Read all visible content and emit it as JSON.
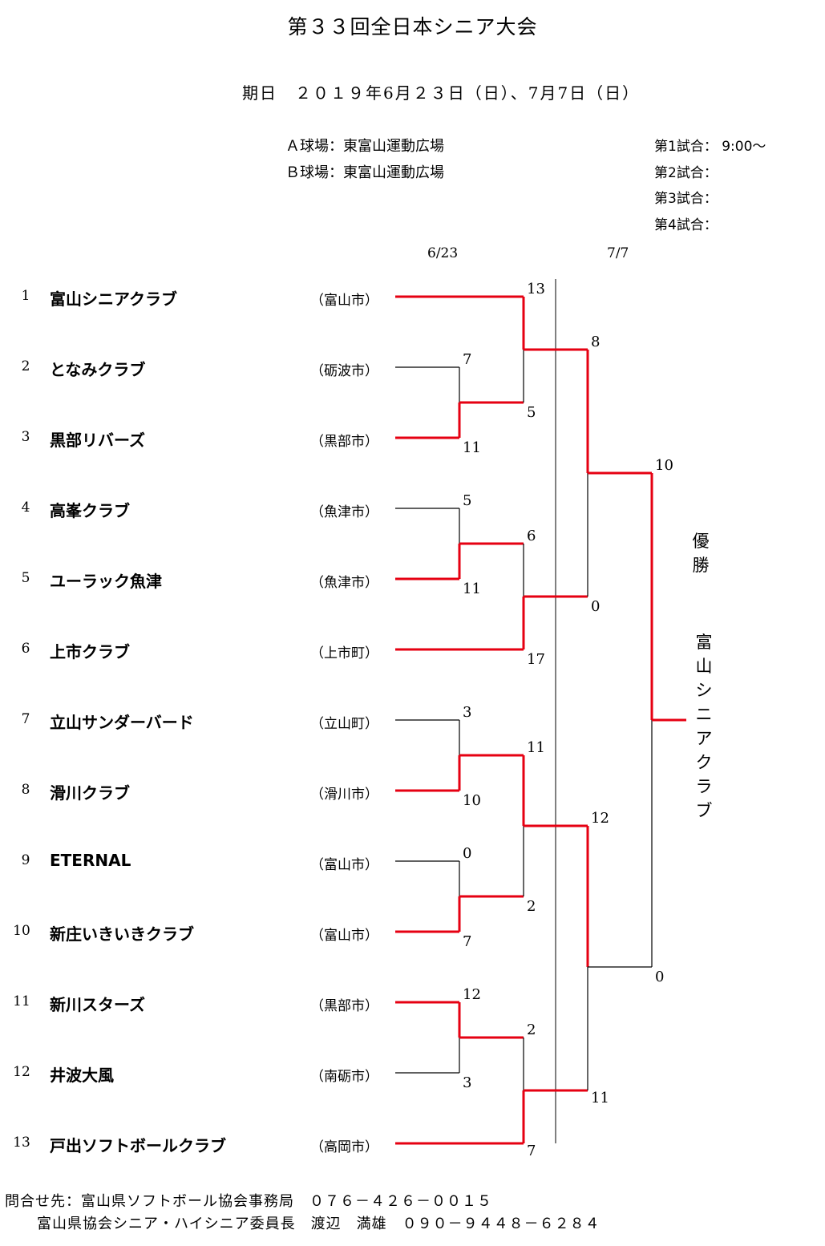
{
  "title": "第３３回全日本シニア大会",
  "date": "期日　２０１９年6月２３日（日）、7月7日（日）",
  "venues": [
    "Ａ球場：東富山運動広場",
    "Ｂ球場：東富山運動広場"
  ],
  "game_times": [
    "第1試合：  9:00～",
    "第2試合：",
    "第3試合：",
    "第4試合："
  ],
  "rounds": [
    "6/23",
    "7/7"
  ],
  "teams": [
    {
      "seed": "1",
      "name": "富山シニアクラブ",
      "city": "（富山市）"
    },
    {
      "seed": "2",
      "name": "となみクラブ",
      "city": "（砺波市）"
    },
    {
      "seed": "3",
      "name": "黒部リバーズ",
      "city": "（黒部市）"
    },
    {
      "seed": "4",
      "name": "高峯クラブ",
      "city": "（魚津市）"
    },
    {
      "seed": "5",
      "name": "ユーラック魚津",
      "city": "（魚津市）"
    },
    {
      "seed": "6",
      "name": "上市クラブ",
      "city": "（上市町）"
    },
    {
      "seed": "7",
      "name": "立山サンダーバード",
      "city": "（立山町）"
    },
    {
      "seed": "8",
      "name": "滑川クラブ",
      "city": "（滑川市）"
    },
    {
      "seed": "9",
      "name": "ETERNAL",
      "city": "（富山市）"
    },
    {
      "seed": "10",
      "name": "新庄いきいきクラブ",
      "city": "（富山市）"
    },
    {
      "seed": "11",
      "name": "新川スターズ",
      "city": "（黒部市）"
    },
    {
      "seed": "12",
      "name": "井波大風",
      "city": "（南砺市）"
    },
    {
      "seed": "13",
      "name": "戸出ソフトボールクラブ",
      "city": "（高岡市）"
    }
  ],
  "scores": {
    "r1_m1": [
      "7",
      "11"
    ],
    "r1_m2": [
      "5",
      "11"
    ],
    "r1_m3": [
      "3",
      "10"
    ],
    "r1_m4": [
      "0",
      "7"
    ],
    "r1_m5": [
      "12",
      "3"
    ],
    "r2_m1": [
      "13",
      "5"
    ],
    "r2_m2": [
      "6",
      "17"
    ],
    "r2_m3": [
      "11",
      "2"
    ],
    "r2_m4": [
      "2",
      "7"
    ],
    "semi_1": [
      "8",
      "0"
    ],
    "semi_2": [
      "12",
      "11"
    ],
    "final": [
      "10",
      "0"
    ]
  },
  "champion_label": "優勝",
  "champion_name": "富山シニアクラブ",
  "footer": [
    "問合せ先：富山県ソフトボール協会事務局　０７６－４２６－００１５",
    "富山県協会シニア・ハイシニア委員長　渡辺　満雄　０９０－９４４８－６２８４"
  ],
  "colors": {
    "winner_line": "#e60012",
    "loser_line": "#000000",
    "divider": "#000000"
  }
}
